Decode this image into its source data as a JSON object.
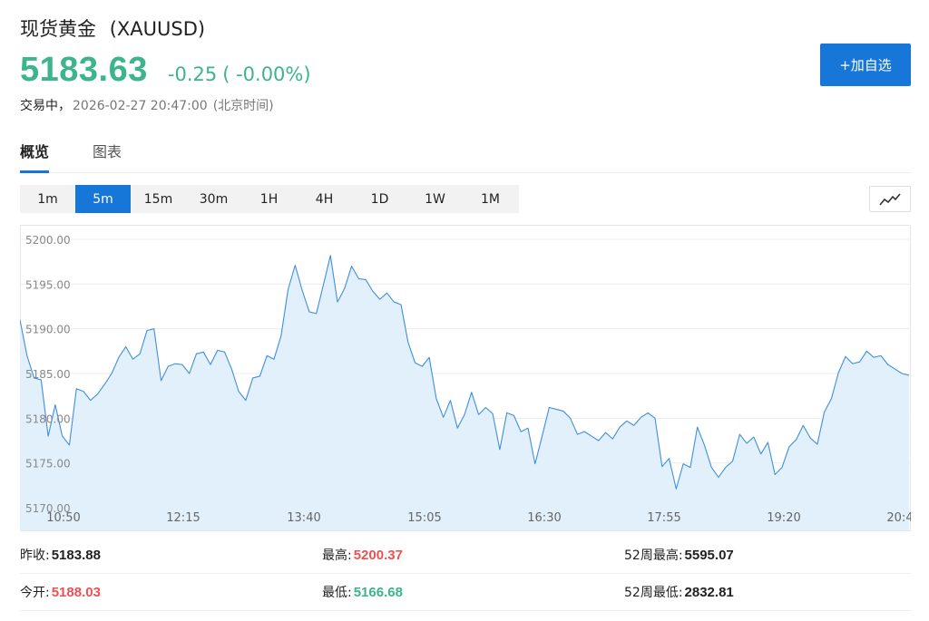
{
  "header": {
    "name": "现货黄金",
    "symbol": "(XAUUSD)",
    "price": "5183.63",
    "change": "-0.25",
    "change_pct": "( -0.00%)",
    "status": "交易中，",
    "timestamp": "2026-02-27 20:47:00",
    "timezone": "(北京时间)",
    "add_button": "+加自选"
  },
  "tabs": [
    {
      "label": "概览",
      "active": true
    },
    {
      "label": "图表",
      "active": false
    }
  ],
  "periods": [
    {
      "label": "1m",
      "active": false
    },
    {
      "label": "5m",
      "active": true
    },
    {
      "label": "15m",
      "active": false
    },
    {
      "label": "30m",
      "active": false
    },
    {
      "label": "1H",
      "active": false
    },
    {
      "label": "4H",
      "active": false
    },
    {
      "label": "1D",
      "active": false
    },
    {
      "label": "1W",
      "active": false
    },
    {
      "label": "1M",
      "active": false
    }
  ],
  "chart_type_icon": "line-chart-icon",
  "colors": {
    "accent": "#1677d9",
    "up": "#f05050",
    "down": "#3cb48c",
    "line": "#3f8fdc",
    "area": "#e2f0fc"
  },
  "chart_data": {
    "type": "area",
    "interval": "5m",
    "ylim": [
      5170,
      5200
    ],
    "y_ticks": [
      "5200.00",
      "5195.00",
      "5190.00",
      "5185.00",
      "5180.00",
      "5175.00",
      "5170.00"
    ],
    "x_ticks": [
      "10:50",
      "12:15",
      "13:40",
      "15:05",
      "16:30",
      "17:55",
      "19:20",
      "20:4"
    ],
    "x_range": [
      "10:50",
      "20:47"
    ],
    "grid": true,
    "values": [
      5191.0,
      5187.0,
      5184.5,
      5184.3,
      5178.0,
      5181.5,
      5178.0,
      5177.0,
      5183.3,
      5183.0,
      5182.0,
      5182.7,
      5183.8,
      5185.0,
      5186.8,
      5188.0,
      5186.6,
      5187.2,
      5189.8,
      5190.0,
      5184.2,
      5185.8,
      5186.1,
      5186.0,
      5185.0,
      5187.2,
      5187.4,
      5186.0,
      5187.6,
      5187.4,
      5185.5,
      5183.0,
      5182.0,
      5184.5,
      5184.7,
      5187.0,
      5186.6,
      5189.2,
      5194.4,
      5197.1,
      5194.3,
      5191.9,
      5191.7,
      5194.9,
      5198.2,
      5193.0,
      5194.5,
      5197.0,
      5195.6,
      5195.5,
      5194.2,
      5193.3,
      5194.0,
      5193.0,
      5192.7,
      5188.5,
      5186.2,
      5185.8,
      5186.8,
      5182.2,
      5180.1,
      5182.0,
      5178.9,
      5180.4,
      5182.9,
      5180.4,
      5181.2,
      5180.5,
      5176.5,
      5180.6,
      5180.3,
      5178.5,
      5178.9,
      5174.9,
      5178.0,
      5181.2,
      5181.0,
      5180.8,
      5180.0,
      5178.2,
      5178.5,
      5178.0,
      5177.5,
      5178.4,
      5177.7,
      5179.0,
      5179.7,
      5179.2,
      5180.1,
      5180.6,
      5180.0,
      5174.6,
      5175.5,
      5172.1,
      5174.9,
      5174.5,
      5179.0,
      5177.0,
      5174.5,
      5173.4,
      5174.5,
      5175.2,
      5178.2,
      5177.2,
      5177.9,
      5176.0,
      5177.3,
      5173.7,
      5174.5,
      5176.8,
      5177.6,
      5179.2,
      5177.8,
      5177.1,
      5180.7,
      5182.2,
      5185.1,
      5186.9,
      5186.1,
      5186.3,
      5187.5,
      5186.8,
      5187.0,
      5186.0,
      5185.5,
      5185.0,
      5184.8
    ]
  },
  "stats": {
    "rows": [
      [
        {
          "label": "昨收:",
          "value": "5183.88",
          "tone": "neutral"
        },
        {
          "label": "最高:",
          "value": "5200.37",
          "tone": "up"
        },
        {
          "label": "52周最高:",
          "value": "5595.07",
          "tone": "neutral"
        }
      ],
      [
        {
          "label": "今开:",
          "value": "5188.03",
          "tone": "up"
        },
        {
          "label": "最低:",
          "value": "5166.68",
          "tone": "down"
        },
        {
          "label": "52周最低:",
          "value": "2832.81",
          "tone": "neutral"
        }
      ]
    ]
  }
}
